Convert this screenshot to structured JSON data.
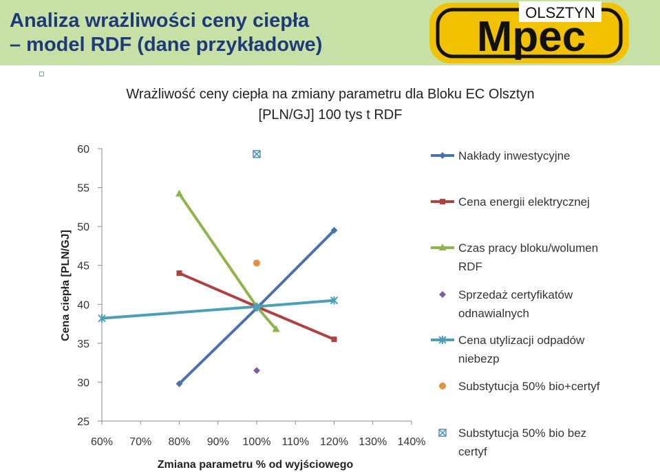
{
  "slide": {
    "title_line1": "Analiza wrażliwości ceny ciepła",
    "title_line2": "– model RDF (dane przykładowe)",
    "logo_main": "Mpec",
    "logo_city": "OLSZTYN"
  },
  "colors": {
    "header_bg": "#c7e0a6",
    "title": "#1f3a7a",
    "logo_yellow": "#f2c200",
    "logo_black": "#111111"
  },
  "chart_data": {
    "type": "line",
    "title_line1": "Wrażliwość ceny ciepła na zmiany parametru dla Bloku EC Olsztyn",
    "title_line2": "[PLN/GJ] 100 tys t RDF",
    "xlabel": "Zmiana parametru % od wyjściowego",
    "ylabel": "Cena ciepła [PLN/GJ]",
    "xlim": [
      60,
      140
    ],
    "ylim": [
      25,
      60
    ],
    "x_ticks": [
      60,
      70,
      80,
      90,
      100,
      110,
      120,
      130,
      140
    ],
    "x_tick_labels": [
      "60%",
      "70%",
      "80%",
      "90%",
      "100%",
      "110%",
      "120%",
      "130%",
      "140%"
    ],
    "y_ticks": [
      25,
      30,
      35,
      40,
      45,
      50,
      55,
      60
    ],
    "y_tick_labels": [
      "25",
      "30",
      "35",
      "40",
      "45",
      "50",
      "55",
      "60"
    ],
    "legend_position": "right",
    "series": [
      {
        "name": "Nakłady inwestycyjne",
        "legend_lines": [
          "Nakłady inwestycyjne"
        ],
        "color": "#4a72b0",
        "marker": "diamond",
        "line": true,
        "points": [
          [
            80,
            29.8
          ],
          [
            100,
            39.5
          ],
          [
            120,
            49.5
          ]
        ]
      },
      {
        "name": "Cena energii elektrycznej",
        "legend_lines": [
          "Cena energii elektrycznej"
        ],
        "color": "#b0413e",
        "marker": "square",
        "line": true,
        "points": [
          [
            80,
            44.0
          ],
          [
            100,
            39.7
          ],
          [
            120,
            35.5
          ]
        ]
      },
      {
        "name": "Czas pracy bloku/wolumen RDF",
        "legend_lines": [
          "Czas pracy bloku/wolumen",
          "RDF"
        ],
        "color": "#8db54a",
        "marker": "triangle",
        "line": true,
        "points": [
          [
            80,
            54.2
          ],
          [
            100,
            39.7
          ],
          [
            105,
            36.8
          ]
        ]
      },
      {
        "name": "Sprzedaż certyfikatów odnawialnych",
        "legend_lines": [
          "Sprzedaż certyfikatów",
          "odnawialnych"
        ],
        "color": "#7b5fa0",
        "marker": "diamond",
        "line": false,
        "points": [
          [
            100,
            31.5
          ]
        ]
      },
      {
        "name": "Cena utylizacji odpadów niebezp",
        "legend_lines": [
          "Cena utylizacji odpadów",
          "niebezp"
        ],
        "color": "#4aa0b8",
        "marker": "star",
        "line": true,
        "points": [
          [
            60,
            38.2
          ],
          [
            100,
            39.7
          ],
          [
            120,
            40.5
          ]
        ]
      },
      {
        "name": "Substytucja 50% bio+certyf",
        "legend_lines": [
          "Substytucja 50% bio+certyf"
        ],
        "color": "#e8913c",
        "marker": "circle",
        "line": false,
        "points": [
          [
            100,
            45.3
          ]
        ]
      },
      {
        "name": "Substytucja 50% bio bez certyf",
        "legend_lines": [
          "Substytucja 50% bio bez",
          "certyf"
        ],
        "color": "#4a8fc0",
        "marker": "xsquare",
        "line": false,
        "points": [
          [
            100,
            59.3
          ]
        ]
      }
    ]
  }
}
